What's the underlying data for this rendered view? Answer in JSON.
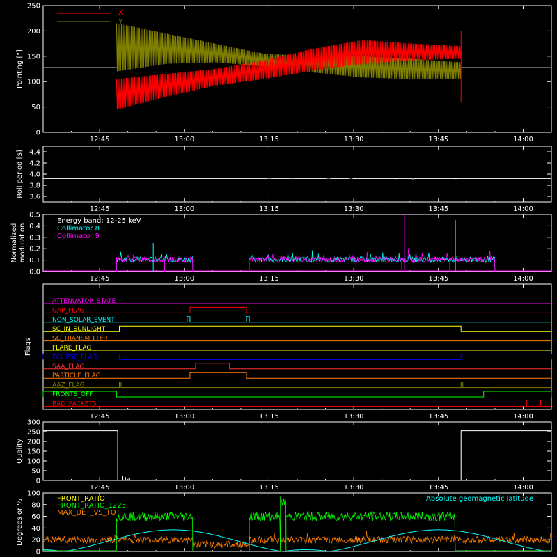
{
  "time_ticks": [
    "12:45",
    "13:00",
    "13:15",
    "13:30",
    "13:45",
    "14:00"
  ],
  "chart_data": [
    {
      "id": "pointing",
      "type": "line",
      "ylabel": "Pointing [\"]",
      "ylim": [
        0,
        250
      ],
      "yticks": [
        0,
        50,
        100,
        150,
        200,
        250
      ],
      "legend_placement": "top-left",
      "series": [
        {
          "name": "X",
          "color": "#ff0000",
          "start_min": 48,
          "end_min": 109,
          "envelope_low": [
            45,
            70,
            92,
            105,
            122,
            135,
            142,
            145
          ],
          "envelope_high": [
            105,
            115,
            125,
            142,
            165,
            182,
            175,
            170
          ]
        },
        {
          "name": "Y",
          "color": "#808000",
          "start_min": 48,
          "end_min": 109,
          "envelope_low": [
            120,
            135,
            138,
            130,
            118,
            108,
            105,
            105
          ],
          "envelope_high": [
            215,
            195,
            175,
            155,
            150,
            150,
            145,
            138
          ]
        }
      ],
      "baseline": 128
    },
    {
      "id": "roll",
      "type": "line",
      "ylabel": "Roll period [s]",
      "ylim": [
        3.5,
        4.5
      ],
      "yticks": [
        3.6,
        3.8,
        4.0,
        4.2,
        4.4
      ],
      "series": [
        {
          "name": "",
          "color": "#ffffff",
          "value": 3.92
        }
      ]
    },
    {
      "id": "modulation",
      "type": "line",
      "ylabel": [
        "Normalized",
        "modulation"
      ],
      "ylim": [
        0,
        0.5
      ],
      "yticks": [
        0.0,
        0.1,
        0.2,
        0.3,
        0.4,
        0.5
      ],
      "legend": [
        {
          "label": "Energy band: 12-25 keV",
          "color": "#ffffff"
        },
        {
          "label": "Collimator 8",
          "color": "#00ffff"
        },
        {
          "label": "Collimator 9",
          "color": "#ff00ff"
        }
      ],
      "active_intervals": [
        [
          48,
          61.5
        ],
        [
          71.5,
          115
        ]
      ],
      "spikes": [
        {
          "x_min": 99,
          "value": 0.5,
          "color": "#ff00ff"
        },
        {
          "x_min": 108,
          "value": 0.45,
          "color": "#00ffff"
        },
        {
          "x_min": 54.5,
          "value": 0.25,
          "color": "#00ffff"
        }
      ],
      "level": 0.1
    },
    {
      "id": "flags",
      "type": "step",
      "ylabel": "Flags",
      "flags": [
        {
          "name": "ATTENUATOR_STATE",
          "color": "#ff00ff",
          "on": []
        },
        {
          "name": "GAP_FLAG",
          "color": "#ff0000",
          "on": [
            [
              61,
              71
            ]
          ]
        },
        {
          "name": "NON_SOLAR_EVENT",
          "color": "#00ffff",
          "on": [
            [
              60.5,
              61
            ],
            [
              71,
              71.5
            ]
          ]
        },
        {
          "name": "SC_IN_SUNLIGHT",
          "color": "#ffff00",
          "on": [
            [
              48.5,
              109
            ]
          ]
        },
        {
          "name": "SC_TRANSMITTER",
          "color": "#ff8000",
          "on": []
        },
        {
          "name": "FLARE_FLAG",
          "color": "#ffff00",
          "on": []
        },
        {
          "name": "ECLIPSE_FLAG",
          "color": "#0000ff",
          "on": [
            [
              35,
              48.5
            ],
            [
              109,
              125
            ]
          ]
        },
        {
          "name": "SAA_FLAG",
          "color": "#ff3030",
          "on": [
            [
              62,
              68
            ]
          ]
        },
        {
          "name": "PARTICLE_FLAG",
          "color": "#ff8000",
          "on": [
            [
              61,
              71
            ]
          ]
        },
        {
          "name": "AAZ_FLAG",
          "color": "#808000",
          "on": [
            [
              48.5,
              48.8
            ],
            [
              109,
              109.3
            ]
          ]
        },
        {
          "name": "FRONTS_OFF",
          "color": "#00ff00",
          "on": [
            [
              35,
              48
            ],
            [
              113,
              125
            ]
          ]
        },
        {
          "name": "BAD_PACKETS",
          "color": "#ff0000",
          "on": [
            [
              120.5,
              120.6
            ],
            [
              123,
              123.1
            ]
          ]
        }
      ]
    },
    {
      "id": "quality",
      "type": "line",
      "ylabel": "Quality",
      "ylim": [
        0,
        300
      ],
      "yticks": [
        0,
        50,
        100,
        150,
        200,
        250,
        300
      ],
      "series": [
        {
          "name": "",
          "color": "#ffffff",
          "high_intervals": [
            [
              35,
              48.2
            ],
            [
              109,
              125
            ]
          ],
          "high_value": 255
        }
      ]
    },
    {
      "id": "ratios",
      "type": "line",
      "ylabel": "Degrees or %",
      "ylim": [
        0,
        100
      ],
      "yticks": [
        0,
        20,
        40,
        60,
        80,
        100
      ],
      "legend": [
        {
          "label": "FRONT_RATIO",
          "color": "#ffff00"
        },
        {
          "label": "FRONT_RATIO_1225",
          "color": "#00ff00"
        },
        {
          "label": "MAX_DET_VS_TOT",
          "color": "#ff8000"
        }
      ],
      "right_legend": {
        "label": "Absolute geomagnetic latitude",
        "color": "#00ffff"
      },
      "series": [
        {
          "name": "FRONT_RATIO_1225",
          "color": "#00ff00",
          "intervals": [
            [
              48,
              61.5
            ],
            [
              71.5,
              77
            ],
            [
              77,
              78
            ],
            [
              78,
              108
            ]
          ],
          "levels": [
            60,
            60,
            85,
            60
          ]
        },
        {
          "name": "MAX_DET_VS_TOT",
          "color": "#ff8000",
          "level": 20
        },
        {
          "name": "Absolute geomagnetic latitude",
          "color": "#00ffff",
          "type": "sine",
          "amplitude": 20,
          "offset": 17,
          "period_min": 47
        }
      ]
    }
  ]
}
